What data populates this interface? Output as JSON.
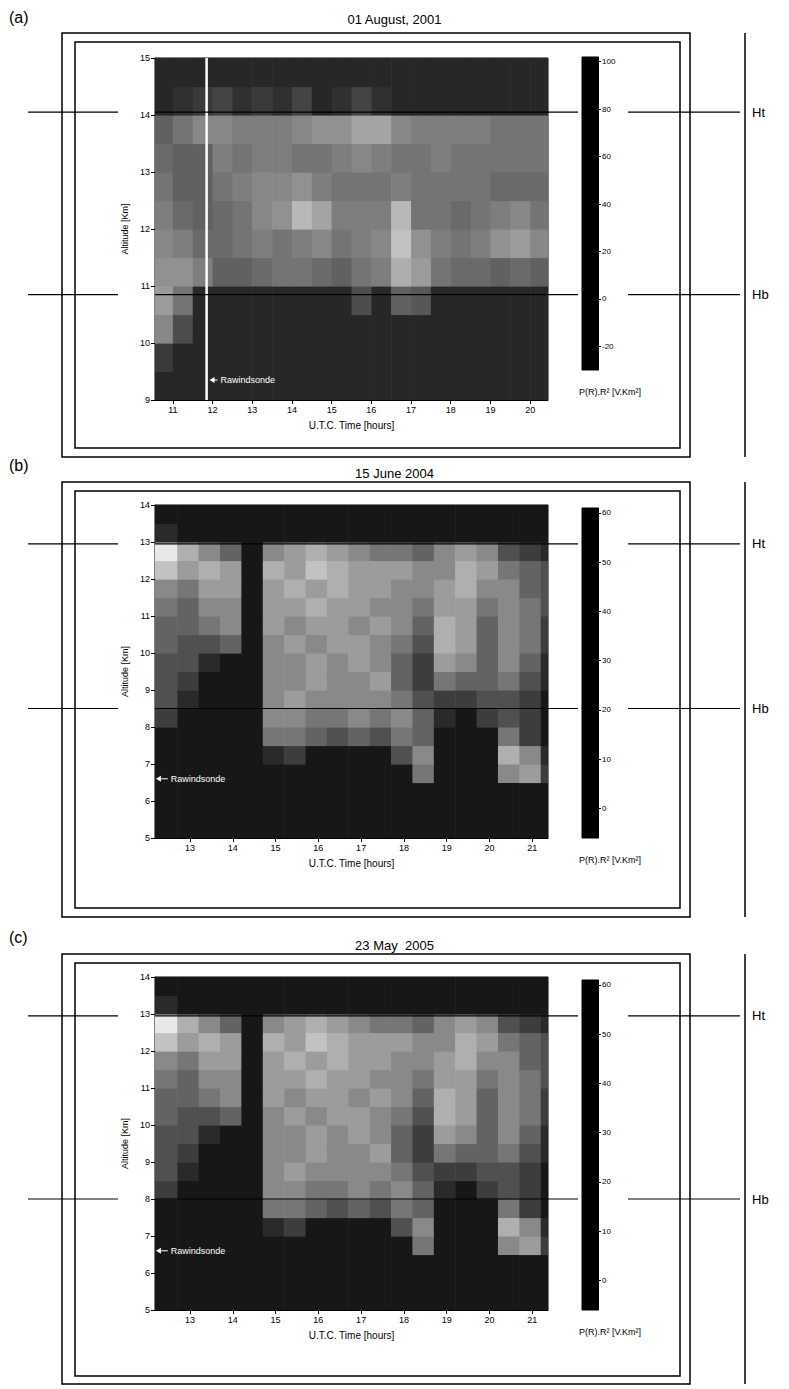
{
  "chart_data": [
    {
      "type": "heatmap",
      "panel": "(a)",
      "title": "01 August, 2001",
      "x_label": "U.T.C. Time [hours]",
      "y_label": "Altitude [Km]",
      "xlim": [
        10.55,
        20.45
      ],
      "xticks": [
        11,
        12,
        13,
        14,
        15,
        16,
        17,
        18,
        19,
        20
      ],
      "ylim": [
        9,
        15
      ],
      "yticks": [
        9,
        10,
        11,
        12,
        13,
        14,
        15
      ],
      "time_edges": [
        10.55,
        11,
        11.5,
        12,
        12.5,
        13,
        13.5,
        14,
        14.5,
        15,
        15.5,
        16,
        16.5,
        17,
        17.5,
        18,
        18.5,
        19,
        19.5,
        20,
        20.45
      ],
      "altitude_edges": [
        9,
        9.5,
        10,
        10.5,
        11,
        11.5,
        12,
        12.5,
        13,
        13.5,
        14,
        14.5,
        15
      ],
      "cells": [
        [
          -10,
          -10,
          -10,
          -10,
          -10,
          -10,
          -10,
          -10,
          -10,
          -10,
          -10,
          -10,
          -10,
          -10,
          -10,
          -10,
          -10,
          -10,
          -10,
          -10
        ],
        [
          0,
          -10,
          -10,
          -10,
          -10,
          -10,
          -10,
          -10,
          -10,
          -10,
          -10,
          -10,
          -10,
          -10,
          -10,
          -10,
          -10,
          -10,
          -10,
          -10
        ],
        [
          40,
          10,
          -10,
          -10,
          -10,
          -10,
          -10,
          -10,
          -10,
          -10,
          -10,
          -10,
          -10,
          -10,
          -10,
          -10,
          -10,
          -10,
          -10,
          -10
        ],
        [
          50,
          30,
          -10,
          -10,
          -10,
          -10,
          -10,
          -10,
          -10,
          -10,
          10,
          -10,
          20,
          15,
          -10,
          -10,
          -10,
          -10,
          -10,
          -10
        ],
        [
          45,
          45,
          35,
          20,
          20,
          25,
          30,
          30,
          25,
          20,
          30,
          35,
          60,
          50,
          30,
          25,
          25,
          20,
          25,
          20
        ],
        [
          40,
          35,
          25,
          25,
          30,
          35,
          30,
          35,
          40,
          30,
          35,
          40,
          70,
          45,
          35,
          30,
          35,
          45,
          50,
          40
        ],
        [
          35,
          25,
          20,
          25,
          30,
          40,
          45,
          65,
          55,
          35,
          35,
          35,
          65,
          30,
          30,
          25,
          30,
          35,
          40,
          30
        ],
        [
          30,
          20,
          20,
          30,
          35,
          40,
          40,
          45,
          35,
          30,
          30,
          30,
          35,
          30,
          30,
          30,
          30,
          25,
          25,
          25
        ],
        [
          25,
          20,
          20,
          35,
          30,
          35,
          35,
          30,
          30,
          35,
          40,
          35,
          30,
          30,
          35,
          30,
          30,
          30,
          30,
          30
        ],
        [
          20,
          30,
          40,
          40,
          35,
          35,
          35,
          40,
          45,
          45,
          55,
          55,
          40,
          35,
          35,
          35,
          35,
          30,
          30,
          30
        ],
        [
          -10,
          -5,
          0,
          5,
          -5,
          0,
          -5,
          5,
          -10,
          -5,
          5,
          -5,
          -10,
          -10,
          -10,
          -10,
          -10,
          -10,
          -10,
          -10
        ],
        [
          -10,
          -10,
          -10,
          -10,
          -10,
          -10,
          -10,
          -10,
          -10,
          -10,
          -10,
          -10,
          -10,
          -10,
          -10,
          -10,
          -10,
          -10,
          -10,
          -10
        ]
      ],
      "colorbar": {
        "label": "P(R).R² [V.Km²]",
        "lim": [
          -30,
          102
        ],
        "ticks": [
          -20,
          0,
          20,
          40,
          60,
          80,
          100
        ],
        "colors": [
          "#000000",
          "#ffffff"
        ]
      },
      "levels": [
        {
          "label": "Ht",
          "value": 14.05
        },
        {
          "label": "Hb",
          "value": 10.85
        }
      ],
      "rawindsonde_line": {
        "x": 11.85,
        "color": "#ffffff"
      },
      "annotations": [
        {
          "text": "Rawindsonde",
          "x": 12.2,
          "y": 9.35,
          "arrow_x": 11.9
        }
      ]
    },
    {
      "type": "heatmap",
      "panel": "(b)",
      "title": "15 June 2004",
      "x_label": "U.T.C. Time [hours]",
      "y_label": "Altitude [Km]",
      "xlim": [
        12.18,
        21.37
      ],
      "xticks": [
        13,
        14,
        15,
        16,
        17,
        18,
        19,
        20,
        21
      ],
      "ylim": [
        5,
        14
      ],
      "yticks": [
        5,
        6,
        7,
        8,
        9,
        10,
        11,
        12,
        13,
        14
      ],
      "time_edges": [
        12.18,
        12.7,
        13.2,
        13.7,
        14.2,
        14.7,
        15.2,
        15.7,
        16.2,
        16.7,
        17.2,
        17.7,
        18.2,
        18.7,
        19.2,
        19.7,
        20.2,
        20.7,
        21.2,
        21.37
      ],
      "altitude_edges": [
        5,
        5.5,
        6,
        6.5,
        7,
        7.5,
        8,
        8.5,
        9,
        9.5,
        10,
        10.5,
        11,
        11.5,
        12,
        12.5,
        13,
        13.5,
        14
      ],
      "cells": [
        [
          0,
          0,
          0,
          0,
          0,
          0,
          0,
          0,
          0,
          0,
          0,
          0,
          0,
          0,
          0,
          0,
          0,
          0,
          0
        ],
        [
          0,
          0,
          0,
          0,
          0,
          0,
          0,
          0,
          0,
          0,
          0,
          0,
          0,
          0,
          0,
          0,
          0,
          0,
          0
        ],
        [
          0,
          0,
          0,
          0,
          0,
          0,
          0,
          0,
          0,
          0,
          0,
          0,
          0,
          0,
          0,
          0,
          0,
          0,
          0
        ],
        [
          0,
          0,
          0,
          0,
          0,
          0,
          0,
          0,
          0,
          0,
          0,
          0,
          25,
          0,
          0,
          0,
          30,
          35,
          10
        ],
        [
          0,
          0,
          0,
          0,
          0,
          5,
          10,
          0,
          0,
          0,
          0,
          15,
          30,
          0,
          0,
          0,
          40,
          30,
          5
        ],
        [
          0,
          0,
          0,
          0,
          0,
          25,
          25,
          20,
          15,
          20,
          15,
          25,
          20,
          0,
          0,
          0,
          25,
          10,
          0
        ],
        [
          10,
          0,
          0,
          0,
          0,
          30,
          30,
          25,
          25,
          30,
          25,
          30,
          20,
          5,
          0,
          10,
          15,
          10,
          0
        ],
        [
          15,
          5,
          0,
          0,
          0,
          30,
          35,
          30,
          30,
          30,
          30,
          25,
          15,
          10,
          10,
          15,
          15,
          10,
          0
        ],
        [
          15,
          10,
          0,
          0,
          0,
          30,
          30,
          35,
          30,
          30,
          35,
          20,
          10,
          25,
          20,
          20,
          25,
          15,
          5
        ],
        [
          15,
          15,
          5,
          0,
          0,
          30,
          30,
          35,
          30,
          35,
          30,
          20,
          10,
          35,
          30,
          20,
          30,
          20,
          5
        ],
        [
          20,
          15,
          15,
          20,
          0,
          30,
          35,
          30,
          35,
          35,
          30,
          25,
          15,
          40,
          35,
          20,
          30,
          25,
          10
        ],
        [
          20,
          20,
          25,
          30,
          0,
          35,
          30,
          35,
          35,
          30,
          35,
          30,
          20,
          40,
          35,
          20,
          30,
          25,
          10
        ],
        [
          25,
          20,
          30,
          30,
          0,
          35,
          35,
          40,
          35,
          35,
          30,
          30,
          25,
          35,
          35,
          25,
          30,
          25,
          15
        ],
        [
          30,
          25,
          35,
          35,
          0,
          35,
          40,
          35,
          40,
          35,
          35,
          30,
          30,
          35,
          40,
          30,
          30,
          20,
          15
        ],
        [
          45,
          35,
          40,
          35,
          0,
          40,
          35,
          45,
          40,
          35,
          35,
          35,
          30,
          30,
          40,
          35,
          25,
          20,
          15
        ],
        [
          55,
          40,
          30,
          20,
          0,
          30,
          35,
          40,
          35,
          30,
          25,
          25,
          20,
          30,
          35,
          30,
          15,
          10,
          5
        ],
        [
          5,
          0,
          0,
          0,
          0,
          0,
          0,
          0,
          0,
          0,
          0,
          0,
          0,
          0,
          0,
          0,
          0,
          0,
          0
        ],
        [
          0,
          0,
          0,
          0,
          0,
          0,
          0,
          0,
          0,
          0,
          0,
          0,
          0,
          0,
          0,
          0,
          0,
          0,
          0
        ]
      ],
      "colorbar": {
        "label": "P(R).R² [V.Km²]",
        "lim": [
          -6,
          61
        ],
        "ticks": [
          0,
          10,
          20,
          30,
          40,
          50,
          60
        ],
        "colors": [
          "#000000",
          "#ffffff"
        ]
      },
      "levels": [
        {
          "label": "Ht",
          "value": 12.95
        },
        {
          "label": "Hb",
          "value": 8.5
        }
      ],
      "annotations": [
        {
          "text": "Rawindsonde",
          "x": 12.55,
          "y": 6.6,
          "arrow_x": 12.18
        }
      ]
    },
    {
      "type": "heatmap",
      "panel": "(c)",
      "title": "23 May  2005",
      "x_label": "U.T.C. Time [hours]",
      "y_label": "Altitude [Km]",
      "xlim": [
        12.18,
        21.37
      ],
      "xticks": [
        13,
        14,
        15,
        16,
        17,
        18,
        19,
        20,
        21
      ],
      "ylim": [
        5,
        14
      ],
      "yticks": [
        5,
        6,
        7,
        8,
        9,
        10,
        11,
        12,
        13,
        14
      ],
      "time_edges": [
        12.18,
        12.7,
        13.2,
        13.7,
        14.2,
        14.7,
        15.2,
        15.7,
        16.2,
        16.7,
        17.2,
        17.7,
        18.2,
        18.7,
        19.2,
        19.7,
        20.2,
        20.7,
        21.2,
        21.37
      ],
      "altitude_edges": [
        5,
        5.5,
        6,
        6.5,
        7,
        7.5,
        8,
        8.5,
        9,
        9.5,
        10,
        10.5,
        11,
        11.5,
        12,
        12.5,
        13,
        13.5,
        14
      ],
      "cells": [
        [
          0,
          0,
          0,
          0,
          0,
          0,
          0,
          0,
          0,
          0,
          0,
          0,
          0,
          0,
          0,
          0,
          0,
          0,
          0
        ],
        [
          0,
          0,
          0,
          0,
          0,
          0,
          0,
          0,
          0,
          0,
          0,
          0,
          0,
          0,
          0,
          0,
          0,
          0,
          0
        ],
        [
          0,
          0,
          0,
          0,
          0,
          0,
          0,
          0,
          0,
          0,
          0,
          0,
          0,
          0,
          0,
          0,
          0,
          0,
          0
        ],
        [
          0,
          0,
          0,
          0,
          0,
          0,
          0,
          0,
          0,
          0,
          0,
          0,
          25,
          0,
          0,
          0,
          30,
          35,
          10
        ],
        [
          0,
          0,
          0,
          0,
          0,
          5,
          10,
          0,
          0,
          0,
          0,
          15,
          30,
          0,
          0,
          0,
          40,
          30,
          5
        ],
        [
          0,
          0,
          0,
          0,
          0,
          25,
          25,
          20,
          15,
          20,
          15,
          25,
          20,
          0,
          0,
          0,
          25,
          10,
          0
        ],
        [
          10,
          0,
          0,
          0,
          0,
          30,
          30,
          25,
          25,
          30,
          25,
          30,
          20,
          5,
          0,
          10,
          15,
          10,
          0
        ],
        [
          15,
          5,
          0,
          0,
          0,
          30,
          35,
          30,
          30,
          30,
          30,
          25,
          15,
          10,
          10,
          15,
          15,
          10,
          0
        ],
        [
          15,
          10,
          0,
          0,
          0,
          30,
          30,
          35,
          30,
          30,
          35,
          20,
          10,
          25,
          20,
          20,
          25,
          15,
          5
        ],
        [
          15,
          15,
          5,
          0,
          0,
          30,
          30,
          35,
          30,
          35,
          30,
          20,
          10,
          35,
          30,
          20,
          30,
          20,
          5
        ],
        [
          20,
          15,
          15,
          20,
          0,
          30,
          35,
          30,
          35,
          35,
          30,
          25,
          15,
          40,
          35,
          20,
          30,
          25,
          10
        ],
        [
          20,
          20,
          25,
          30,
          0,
          35,
          30,
          35,
          35,
          30,
          35,
          30,
          20,
          40,
          35,
          20,
          30,
          25,
          10
        ],
        [
          25,
          20,
          30,
          30,
          0,
          35,
          35,
          40,
          35,
          35,
          30,
          30,
          25,
          35,
          35,
          25,
          30,
          25,
          15
        ],
        [
          30,
          25,
          35,
          35,
          0,
          35,
          40,
          35,
          40,
          35,
          35,
          30,
          30,
          35,
          40,
          30,
          30,
          20,
          15
        ],
        [
          45,
          35,
          40,
          35,
          0,
          40,
          35,
          45,
          40,
          35,
          35,
          35,
          30,
          30,
          40,
          35,
          25,
          20,
          15
        ],
        [
          55,
          40,
          30,
          20,
          0,
          30,
          35,
          40,
          35,
          30,
          25,
          25,
          20,
          30,
          35,
          30,
          15,
          10,
          5
        ],
        [
          5,
          0,
          0,
          0,
          0,
          0,
          0,
          0,
          0,
          0,
          0,
          0,
          0,
          0,
          0,
          0,
          0,
          0,
          0
        ],
        [
          0,
          0,
          0,
          0,
          0,
          0,
          0,
          0,
          0,
          0,
          0,
          0,
          0,
          0,
          0,
          0,
          0,
          0,
          0
        ]
      ],
      "colorbar": {
        "label": "P(R).R² [V.Km²]",
        "lim": [
          -6,
          61
        ],
        "ticks": [
          0,
          10,
          20,
          30,
          40,
          50,
          60
        ],
        "colors": [
          "#000000",
          "#ffffff"
        ]
      },
      "levels": [
        {
          "label": "Ht",
          "value": 12.95
        },
        {
          "label": "Hb",
          "value": 8.0
        }
      ],
      "annotations": [
        {
          "text": "Rawindsonde",
          "x": 12.55,
          "y": 6.6,
          "arrow_x": 12.18
        }
      ]
    }
  ]
}
